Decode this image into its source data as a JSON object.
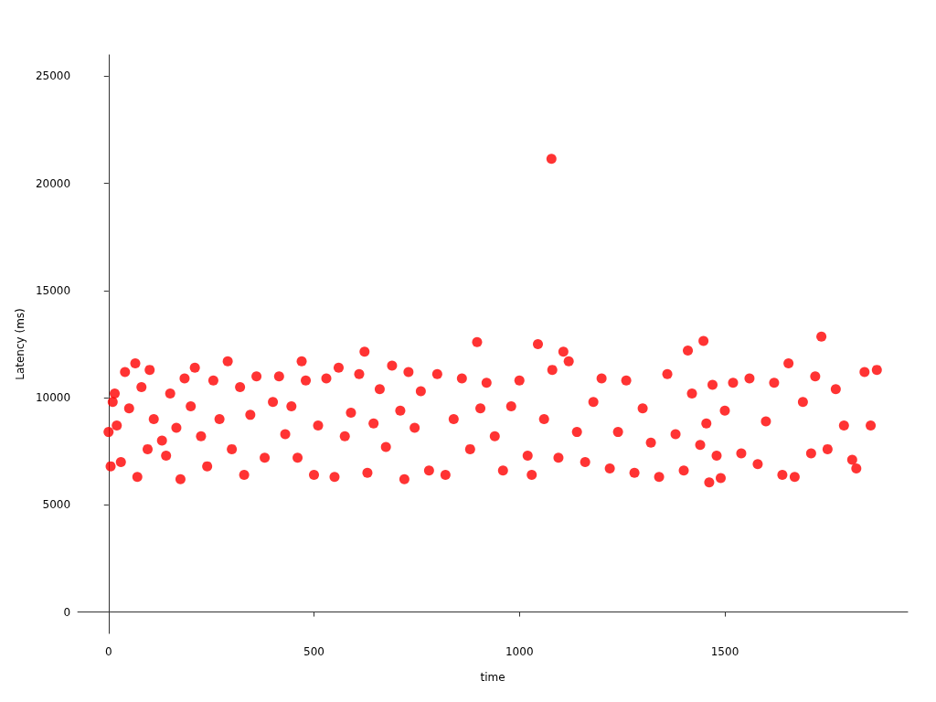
{
  "chart_data": {
    "type": "scatter",
    "xlabel": "time",
    "ylabel": "Latency (ms)",
    "x": [
      0,
      5,
      10,
      15,
      20,
      30,
      40,
      50,
      65,
      70,
      80,
      95,
      100,
      110,
      130,
      140,
      150,
      165,
      175,
      185,
      200,
      210,
      225,
      240,
      255,
      270,
      290,
      300,
      320,
      330,
      345,
      360,
      380,
      400,
      415,
      430,
      445,
      460,
      470,
      480,
      500,
      510,
      530,
      550,
      560,
      575,
      590,
      610,
      623,
      630,
      645,
      660,
      675,
      690,
      710,
      720,
      730,
      745,
      760,
      780,
      800,
      820,
      840,
      860,
      880,
      897,
      905,
      920,
      940,
      960,
      980,
      1000,
      1020,
      1030,
      1045,
      1060,
      1078,
      1080,
      1095,
      1107,
      1120,
      1140,
      1160,
      1180,
      1200,
      1220,
      1240,
      1260,
      1280,
      1300,
      1320,
      1340,
      1360,
      1380,
      1400,
      1410,
      1420,
      1440,
      1448,
      1455,
      1462,
      1470,
      1480,
      1490,
      1500,
      1520,
      1540,
      1560,
      1580,
      1600,
      1620,
      1640,
      1655,
      1670,
      1690,
      1710,
      1720,
      1735,
      1750,
      1770,
      1790,
      1810,
      1820,
      1840,
      1855,
      1870
    ],
    "values": [
      8400,
      6800,
      9800,
      10200,
      8700,
      7000,
      11200,
      9500,
      11600,
      6300,
      10500,
      7600,
      11300,
      9000,
      8000,
      7300,
      10200,
      8600,
      6200,
      10900,
      9600,
      11400,
      8200,
      6800,
      10800,
      9000,
      11700,
      7600,
      10500,
      6400,
      9200,
      11000,
      7200,
      9800,
      11000,
      8300,
      9600,
      7200,
      11700,
      10800,
      6400,
      8700,
      10900,
      6300,
      11400,
      8200,
      9300,
      11100,
      12150,
      6500,
      8800,
      10400,
      7700,
      11500,
      9400,
      6200,
      11200,
      8600,
      10300,
      6600,
      11100,
      6400,
      9000,
      10900,
      7600,
      12600,
      9500,
      10700,
      8200,
      6600,
      9600,
      10800,
      7300,
      6400,
      12500,
      9000,
      21150,
      11300,
      7200,
      12150,
      11700,
      8400,
      7000,
      9800,
      10900,
      6700,
      8400,
      10800,
      6500,
      9500,
      7900,
      6300,
      11100,
      8300,
      6600,
      12200,
      10200,
      7800,
      12650,
      8800,
      6050,
      10600,
      7300,
      6250,
      9400,
      10700,
      7400,
      10900,
      6900,
      8900,
      10700,
      6400,
      11600,
      6300,
      9800,
      7400,
      11000,
      12850,
      7600,
      10400,
      8700,
      7100,
      6700,
      11200,
      8700,
      11300
    ],
    "color": "#ff0000",
    "xlim": [
      -75,
      1945
    ],
    "xticks": [
      0,
      500,
      1000,
      1500
    ],
    "ylim": [
      -1000,
      26000
    ],
    "yticks": [
      0,
      5000,
      10000,
      15000,
      20000,
      25000
    ],
    "marker": "circle"
  }
}
